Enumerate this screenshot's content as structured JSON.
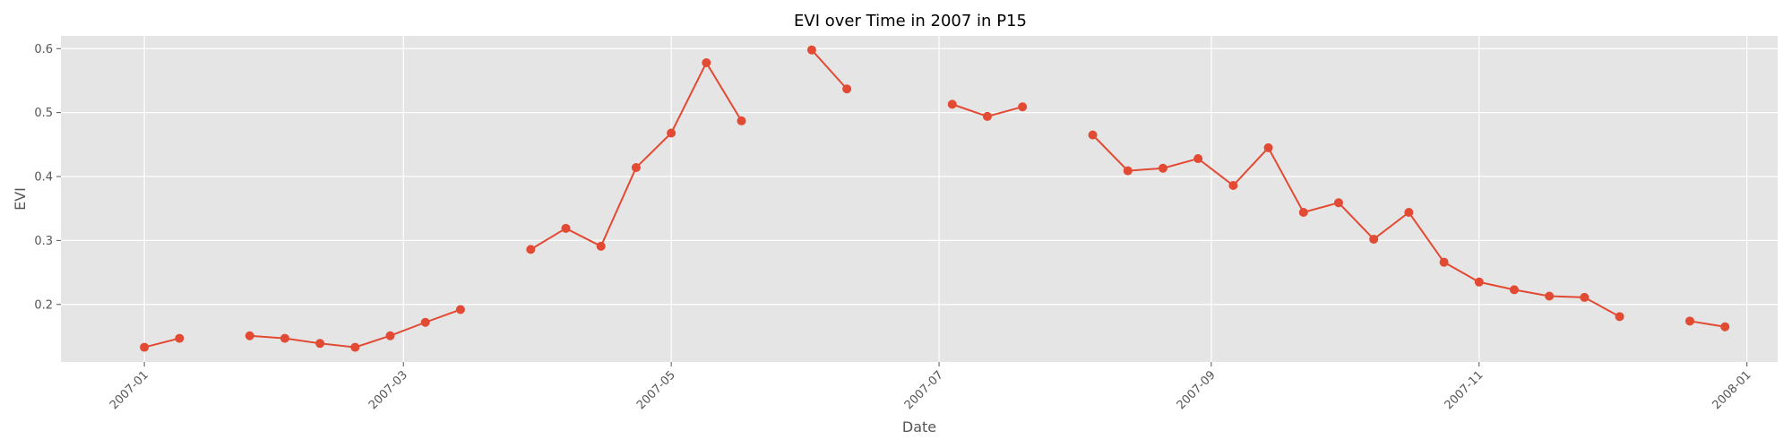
{
  "chart_data": {
    "type": "line",
    "title": "EVI over Time in 2007 in P15",
    "xlabel": "Date",
    "ylabel": "EVI",
    "x_range": [
      "2006-12-13",
      "2008-01-08"
    ],
    "ylim": [
      0.11,
      0.62
    ],
    "grid": true,
    "x_ticks": [
      "2007-01",
      "2007-03",
      "2007-05",
      "2007-07",
      "2007-09",
      "2007-11",
      "2008-01"
    ],
    "x_tick_dates": [
      "2007-01-01",
      "2007-03-01",
      "2007-05-01",
      "2007-07-01",
      "2007-09-01",
      "2007-11-01",
      "2008-01-01"
    ],
    "y_ticks": [
      0.2,
      0.3,
      0.4,
      0.5,
      0.6
    ],
    "y_tick_labels": [
      "0.2",
      "0.3",
      "0.4",
      "0.5",
      "0.6"
    ],
    "colors": {
      "series": "#e24a33",
      "background": "#e5e5e5",
      "grid": "#ffffff"
    },
    "series": [
      {
        "segments": [
          [
            {
              "x": "2007-01-01",
              "y": 0.133
            },
            {
              "x": "2007-01-09",
              "y": 0.147
            }
          ],
          [
            {
              "x": "2007-01-25",
              "y": 0.151
            },
            {
              "x": "2007-02-02",
              "y": 0.147
            },
            {
              "x": "2007-02-10",
              "y": 0.139
            },
            {
              "x": "2007-02-18",
              "y": 0.133
            },
            {
              "x": "2007-02-26",
              "y": 0.151
            },
            {
              "x": "2007-03-06",
              "y": 0.172
            },
            {
              "x": "2007-03-14",
              "y": 0.192
            }
          ],
          [
            {
              "x": "2007-03-30",
              "y": 0.286
            },
            {
              "x": "2007-04-07",
              "y": 0.319
            },
            {
              "x": "2007-04-15",
              "y": 0.291
            },
            {
              "x": "2007-04-23",
              "y": 0.414
            },
            {
              "x": "2007-05-01",
              "y": 0.468
            },
            {
              "x": "2007-05-09",
              "y": 0.578
            },
            {
              "x": "2007-05-17",
              "y": 0.487
            }
          ],
          [
            {
              "x": "2007-06-02",
              "y": 0.598
            },
            {
              "x": "2007-06-10",
              "y": 0.537
            }
          ],
          [
            {
              "x": "2007-07-04",
              "y": 0.513
            },
            {
              "x": "2007-07-12",
              "y": 0.494
            },
            {
              "x": "2007-07-20",
              "y": 0.509
            }
          ],
          [
            {
              "x": "2007-08-05",
              "y": 0.465
            },
            {
              "x": "2007-08-13",
              "y": 0.409
            },
            {
              "x": "2007-08-21",
              "y": 0.413
            },
            {
              "x": "2007-08-29",
              "y": 0.428
            },
            {
              "x": "2007-09-06",
              "y": 0.386
            },
            {
              "x": "2007-09-14",
              "y": 0.445
            },
            {
              "x": "2007-09-22",
              "y": 0.344
            },
            {
              "x": "2007-09-30",
              "y": 0.359
            },
            {
              "x": "2007-10-08",
              "y": 0.302
            },
            {
              "x": "2007-10-16",
              "y": 0.344
            },
            {
              "x": "2007-10-24",
              "y": 0.266
            },
            {
              "x": "2007-11-01",
              "y": 0.235
            },
            {
              "x": "2007-11-09",
              "y": 0.223
            },
            {
              "x": "2007-11-17",
              "y": 0.213
            },
            {
              "x": "2007-11-25",
              "y": 0.211
            },
            {
              "x": "2007-12-03",
              "y": 0.181
            }
          ],
          [
            {
              "x": "2007-12-19",
              "y": 0.174
            },
            {
              "x": "2007-12-27",
              "y": 0.165
            }
          ]
        ]
      }
    ]
  }
}
